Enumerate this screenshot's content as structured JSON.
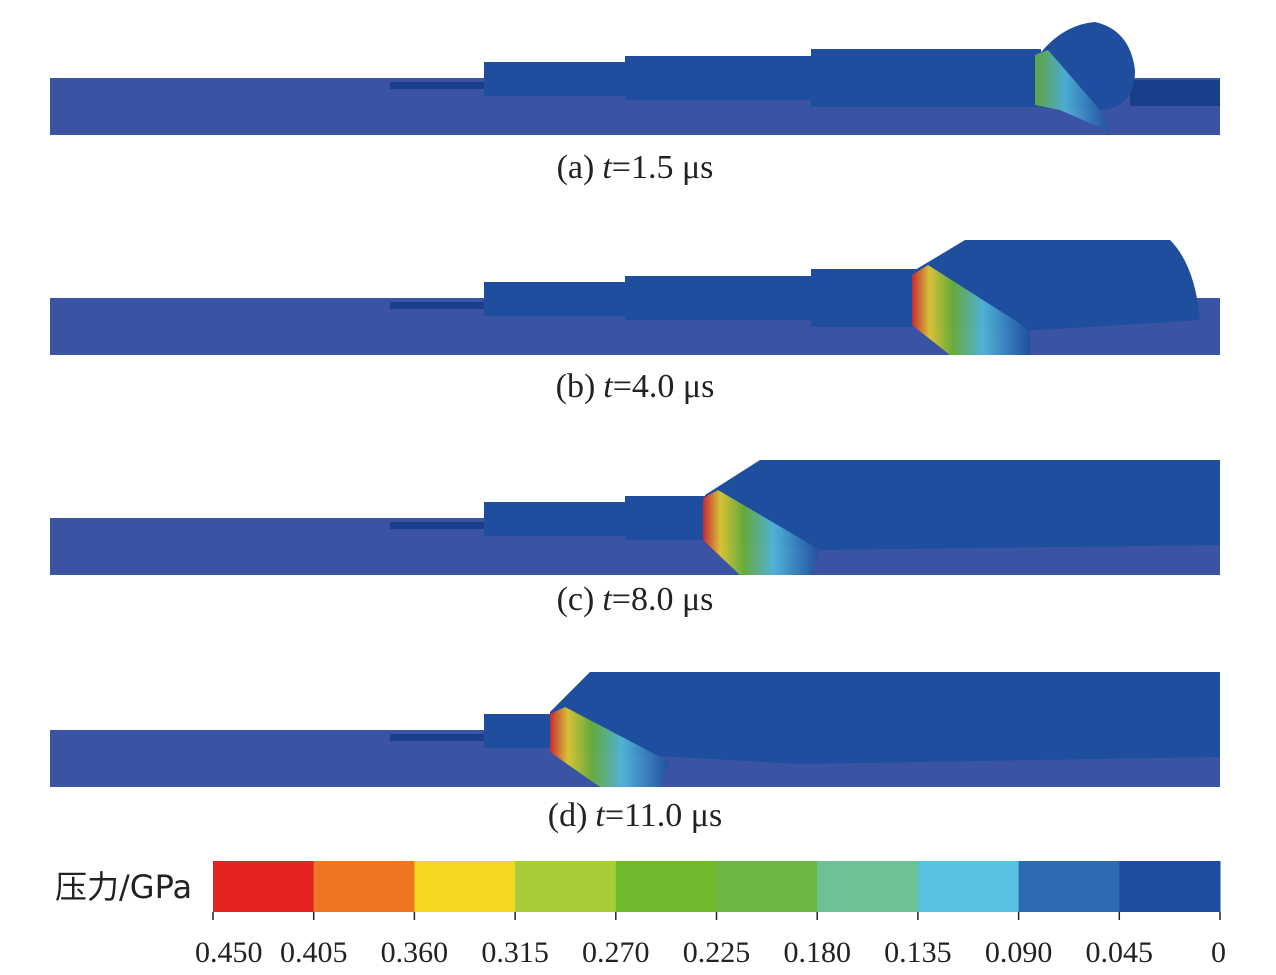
{
  "panels": [
    {
      "label": "(a)",
      "variable": "t",
      "value": "=1.5 μs"
    },
    {
      "label": "(b)",
      "variable": "t",
      "value": "=4.0 μs"
    },
    {
      "label": "(c)",
      "variable": "t",
      "value": "=8.0 μs"
    },
    {
      "label": "(d)",
      "variable": "t",
      "value": "=11.0 μs"
    }
  ],
  "colorbar": {
    "label": "压力/GPa",
    "colors": [
      "#e52421",
      "#ee7623",
      "#f4d623",
      "#a6cd37",
      "#6fb92c",
      "#6db544",
      "#6dc195",
      "#57c2e0",
      "#2c6ab2",
      "#1e4d9f"
    ],
    "ticks": [
      {
        "value": 0.45,
        "label": "0.450"
      },
      {
        "value": 0.405,
        "label": "0.405"
      },
      {
        "value": 0.36,
        "label": "0.360"
      },
      {
        "value": 0.315,
        "label": "0.315"
      },
      {
        "value": 0.27,
        "label": "0.270"
      },
      {
        "value": 0.225,
        "label": "0.225"
      },
      {
        "value": 0.18,
        "label": "0.180"
      },
      {
        "value": 0.135,
        "label": "0.135"
      },
      {
        "value": 0.09,
        "label": "0.090"
      },
      {
        "value": 0.045,
        "label": "0.045"
      },
      0
    ]
  }
}
